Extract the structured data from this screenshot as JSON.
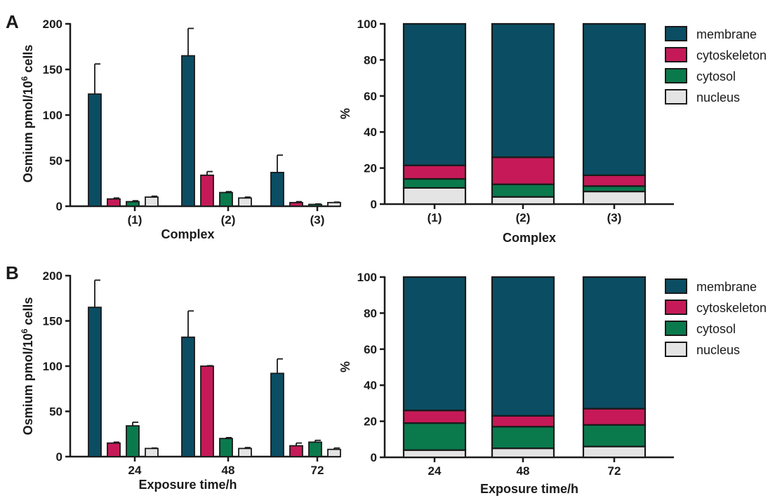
{
  "colors": {
    "membrane": "#0b4d63",
    "cytoskeleton": "#c51a57",
    "cytosol": "#0a7a4d",
    "nucleus": "#e4e4e4",
    "axis": "#1a1a1a"
  },
  "chart_data": [
    {
      "panel": "A",
      "type": "bar",
      "xlabel": "Complex",
      "ylabel_parts": [
        "Osmium pmol/10",
        "6",
        " cells"
      ],
      "ylim": [
        0,
        200
      ],
      "yticks": [
        "0",
        "50",
        "100",
        "150",
        "200"
      ],
      "categories": [
        "(1)",
        "(2)",
        "(3)"
      ],
      "series": [
        {
          "key": "membrane",
          "values": [
            123,
            165,
            37
          ],
          "errors": [
            33,
            30,
            19
          ]
        },
        {
          "key": "cytoskeleton",
          "values": [
            8,
            34,
            4
          ],
          "errors": [
            1,
            4,
            1
          ]
        },
        {
          "key": "cytosol",
          "values": [
            5,
            15,
            2
          ],
          "errors": [
            1,
            1,
            0.5
          ]
        },
        {
          "key": "nucleus",
          "values": [
            10,
            9,
            4
          ],
          "errors": [
            1,
            1,
            0.5
          ]
        }
      ]
    },
    {
      "panel": "",
      "type": "stacked-bar",
      "xlabel": "Complex",
      "ylabel": "%",
      "ylim": [
        0,
        100
      ],
      "yticks": [
        "0",
        "20",
        "40",
        "60",
        "80",
        "100"
      ],
      "categories": [
        "(1)",
        "(2)",
        "(3)"
      ],
      "series": [
        {
          "key": "nucleus",
          "values": [
            9,
            4,
            7
          ]
        },
        {
          "key": "cytosol",
          "values": [
            5,
            7,
            3
          ]
        },
        {
          "key": "cytoskeleton",
          "values": [
            7.5,
            15,
            6
          ]
        },
        {
          "key": "membrane",
          "values": [
            78.5,
            74,
            84
          ]
        }
      ],
      "legend": [
        "membrane",
        "cytoskeleton",
        "cytosol",
        "nucleus"
      ]
    },
    {
      "panel": "B",
      "type": "bar",
      "xlabel": "Exposure time/h",
      "ylabel_parts": [
        "Osmium pmol/10",
        "6",
        " cells"
      ],
      "ylim": [
        0,
        200
      ],
      "yticks": [
        "0",
        "50",
        "100",
        "150",
        "200"
      ],
      "categories": [
        "24",
        "48",
        "72"
      ],
      "series": [
        {
          "key": "membrane",
          "values": [
            165,
            132,
            92
          ],
          "errors": [
            30,
            29,
            16
          ]
        },
        {
          "key": "cytoskeleton",
          "values": [
            15,
            100,
            12
          ],
          "errors": [
            1,
            0.5,
            3
          ]
        },
        {
          "key": "cytosol",
          "values": [
            34,
            20,
            16
          ],
          "errors": [
            4,
            1,
            2
          ]
        },
        {
          "key": "nucleus",
          "values": [
            9,
            9,
            8
          ],
          "errors": [
            0.5,
            1,
            1.5
          ]
        }
      ]
    },
    {
      "panel": "",
      "type": "stacked-bar",
      "xlabel": "Exposure time/h",
      "ylabel": "%",
      "ylim": [
        0,
        100
      ],
      "yticks": [
        "0",
        "20",
        "40",
        "60",
        "80",
        "100"
      ],
      "categories": [
        "24",
        "48",
        "72"
      ],
      "series": [
        {
          "key": "nucleus",
          "values": [
            4,
            5,
            6
          ]
        },
        {
          "key": "cytosol",
          "values": [
            15,
            12,
            12
          ]
        },
        {
          "key": "cytoskeleton",
          "values": [
            7,
            6,
            9
          ]
        },
        {
          "key": "membrane",
          "values": [
            74,
            77,
            73
          ]
        }
      ],
      "legend": [
        "membrane",
        "cytoskeleton",
        "cytosol",
        "nucleus"
      ]
    }
  ]
}
